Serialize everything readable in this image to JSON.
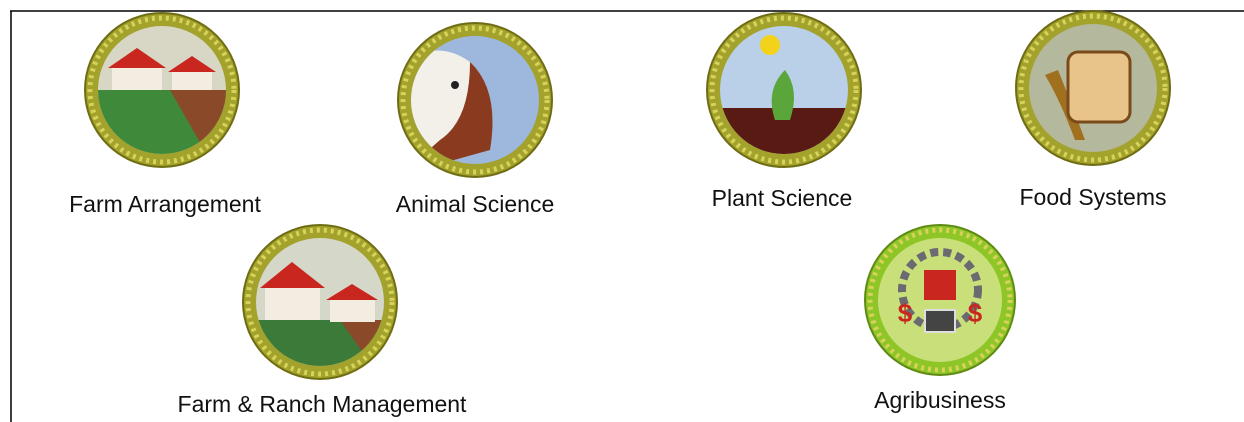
{
  "badges": [
    {
      "label": "Farm Arrangement"
    },
    {
      "label": "Animal Science"
    },
    {
      "label": "Plant Science"
    },
    {
      "label": "Food Systems"
    },
    {
      "label": "Farm & Ranch Management"
    },
    {
      "label": "Agribusiness"
    }
  ]
}
